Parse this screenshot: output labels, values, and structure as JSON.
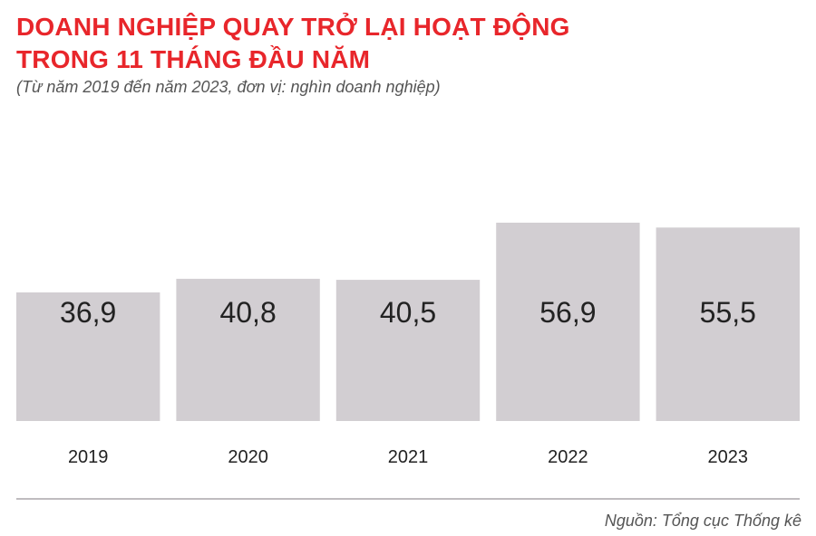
{
  "header": {
    "title_line1": "DOANH NGHIỆP QUAY TRỞ LẠI HOẠT ĐỘNG",
    "title_line2": "TRONG 11 THÁNG ĐẦU NĂM",
    "subtitle": "(Từ năm 2019 đến năm 2023, đơn vị: nghìn doanh nghiệp)"
  },
  "footer": {
    "source": "Nguồn: Tổng cục Thống kê"
  },
  "colors": {
    "title": "#e8262b",
    "bar": "#d2ced2",
    "value_label": "#222222",
    "category_label": "#222222",
    "rule": "#bfbcbf"
  },
  "chart_data": {
    "type": "bar",
    "title": "DOANH NGHIỆP QUAY TRỞ LẠI HOẠT ĐỘNG TRONG 11 THÁNG ĐẦU NĂM",
    "subtitle": "(Từ năm 2019 đến năm 2023, đơn vị: nghìn doanh nghiệp)",
    "categories": [
      "2019",
      "2020",
      "2021",
      "2022",
      "2023"
    ],
    "values": [
      36.9,
      40.8,
      40.5,
      56.9,
      55.5
    ],
    "value_labels": [
      "36,9",
      "40,8",
      "40,5",
      "56,9",
      "55,5"
    ],
    "xlabel": "",
    "ylabel": "",
    "grid": false,
    "legend": "none"
  }
}
